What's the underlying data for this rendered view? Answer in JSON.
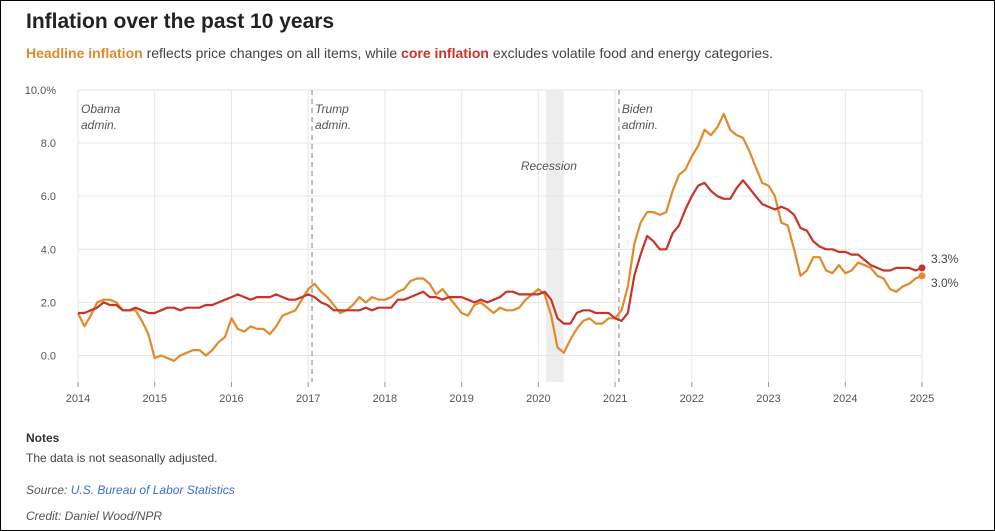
{
  "header": {
    "title": "Inflation over the past 10 years",
    "subtitle_part1": "Headline inflation",
    "subtitle_part2": " reflects price changes on all items, while ",
    "subtitle_part3": "core inflation",
    "subtitle_part4": " excludes volatile food and energy categories."
  },
  "notes": {
    "heading": "Notes",
    "text": "The data is not seasonally adjusted."
  },
  "source": {
    "prefix": "Source: ",
    "link_text": "U.S. Bureau of Labor Statistics"
  },
  "credit": "Credit: Daniel Wood/NPR",
  "colors": {
    "headline": "#e08a2c",
    "core": "#c8332a",
    "grid": "#e6e6e6",
    "recession": "#ededed",
    "divider": "#aaaaaa"
  },
  "chart_data": {
    "type": "line",
    "title": "Inflation over the past 10 years",
    "xlabel": "",
    "ylabel": "",
    "xlim": [
      2014,
      2025
    ],
    "ylim": [
      -1,
      10
    ],
    "y_ticks": [
      0,
      2,
      4,
      6,
      8,
      10
    ],
    "y_tick_labels": [
      "0.0",
      "2.0",
      "4.0",
      "6.0",
      "8.0",
      "10.0%"
    ],
    "x_ticks": [
      2014,
      2015,
      2016,
      2017,
      2018,
      2019,
      2020,
      2021,
      2022,
      2023,
      2024,
      2025
    ],
    "grid": true,
    "recession": {
      "start": 2020.1,
      "end": 2020.33,
      "label": "Recession"
    },
    "administrations": [
      {
        "year": 2014,
        "line1": "Obama",
        "line2": "admin.",
        "divider": false
      },
      {
        "year": 2017.05,
        "line1": "Trump",
        "line2": "admin.",
        "divider": true
      },
      {
        "year": 2021.05,
        "line1": "Biden",
        "line2": "admin.",
        "divider": true
      }
    ],
    "series": [
      {
        "name": "Headline inflation",
        "end_label": "3.0%",
        "points": [
          [
            2014.0,
            1.6
          ],
          [
            2014.083,
            1.1
          ],
          [
            2014.167,
            1.5
          ],
          [
            2014.25,
            2.0
          ],
          [
            2014.333,
            2.1
          ],
          [
            2014.417,
            2.1
          ],
          [
            2014.5,
            2.0
          ],
          [
            2014.583,
            1.7
          ],
          [
            2014.667,
            1.7
          ],
          [
            2014.75,
            1.7
          ],
          [
            2014.833,
            1.3
          ],
          [
            2014.917,
            0.8
          ],
          [
            2015.0,
            -0.1
          ],
          [
            2015.083,
            0.0
          ],
          [
            2015.167,
            -0.1
          ],
          [
            2015.25,
            -0.2
          ],
          [
            2015.333,
            0.0
          ],
          [
            2015.417,
            0.1
          ],
          [
            2015.5,
            0.2
          ],
          [
            2015.583,
            0.2
          ],
          [
            2015.667,
            0.0
          ],
          [
            2015.75,
            0.2
          ],
          [
            2015.833,
            0.5
          ],
          [
            2015.917,
            0.7
          ],
          [
            2016.0,
            1.4
          ],
          [
            2016.083,
            1.0
          ],
          [
            2016.167,
            0.9
          ],
          [
            2016.25,
            1.1
          ],
          [
            2016.333,
            1.0
          ],
          [
            2016.417,
            1.0
          ],
          [
            2016.5,
            0.8
          ],
          [
            2016.583,
            1.1
          ],
          [
            2016.667,
            1.5
          ],
          [
            2016.75,
            1.6
          ],
          [
            2016.833,
            1.7
          ],
          [
            2016.917,
            2.1
          ],
          [
            2017.0,
            2.5
          ],
          [
            2017.083,
            2.7
          ],
          [
            2017.167,
            2.4
          ],
          [
            2017.25,
            2.2
          ],
          [
            2017.333,
            1.9
          ],
          [
            2017.417,
            1.6
          ],
          [
            2017.5,
            1.7
          ],
          [
            2017.583,
            1.9
          ],
          [
            2017.667,
            2.2
          ],
          [
            2017.75,
            2.0
          ],
          [
            2017.833,
            2.2
          ],
          [
            2017.917,
            2.1
          ],
          [
            2018.0,
            2.1
          ],
          [
            2018.083,
            2.2
          ],
          [
            2018.167,
            2.4
          ],
          [
            2018.25,
            2.5
          ],
          [
            2018.333,
            2.8
          ],
          [
            2018.417,
            2.9
          ],
          [
            2018.5,
            2.9
          ],
          [
            2018.583,
            2.7
          ],
          [
            2018.667,
            2.3
          ],
          [
            2018.75,
            2.5
          ],
          [
            2018.833,
            2.2
          ],
          [
            2018.917,
            1.9
          ],
          [
            2019.0,
            1.6
          ],
          [
            2019.083,
            1.5
          ],
          [
            2019.167,
            1.9
          ],
          [
            2019.25,
            2.0
          ],
          [
            2019.333,
            1.8
          ],
          [
            2019.417,
            1.6
          ],
          [
            2019.5,
            1.8
          ],
          [
            2019.583,
            1.7
          ],
          [
            2019.667,
            1.7
          ],
          [
            2019.75,
            1.8
          ],
          [
            2019.833,
            2.1
          ],
          [
            2019.917,
            2.3
          ],
          [
            2020.0,
            2.5
          ],
          [
            2020.083,
            2.3
          ],
          [
            2020.167,
            1.5
          ],
          [
            2020.25,
            0.3
          ],
          [
            2020.333,
            0.1
          ],
          [
            2020.417,
            0.6
          ],
          [
            2020.5,
            1.0
          ],
          [
            2020.583,
            1.3
          ],
          [
            2020.667,
            1.4
          ],
          [
            2020.75,
            1.2
          ],
          [
            2020.833,
            1.2
          ],
          [
            2020.917,
            1.4
          ],
          [
            2021.0,
            1.4
          ],
          [
            2021.083,
            1.7
          ],
          [
            2021.167,
            2.6
          ],
          [
            2021.25,
            4.2
          ],
          [
            2021.333,
            5.0
          ],
          [
            2021.417,
            5.4
          ],
          [
            2021.5,
            5.4
          ],
          [
            2021.583,
            5.3
          ],
          [
            2021.667,
            5.4
          ],
          [
            2021.75,
            6.2
          ],
          [
            2021.833,
            6.8
          ],
          [
            2021.917,
            7.0
          ],
          [
            2022.0,
            7.5
          ],
          [
            2022.083,
            7.9
          ],
          [
            2022.167,
            8.5
          ],
          [
            2022.25,
            8.3
          ],
          [
            2022.333,
            8.6
          ],
          [
            2022.417,
            9.1
          ],
          [
            2022.5,
            8.5
          ],
          [
            2022.583,
            8.3
          ],
          [
            2022.667,
            8.2
          ],
          [
            2022.75,
            7.7
          ],
          [
            2022.833,
            7.1
          ],
          [
            2022.917,
            6.5
          ],
          [
            2023.0,
            6.4
          ],
          [
            2023.083,
            6.0
          ],
          [
            2023.167,
            5.0
          ],
          [
            2023.25,
            4.9
          ],
          [
            2023.333,
            4.0
          ],
          [
            2023.417,
            3.0
          ],
          [
            2023.5,
            3.2
          ],
          [
            2023.583,
            3.7
          ],
          [
            2023.667,
            3.7
          ],
          [
            2023.75,
            3.2
          ],
          [
            2023.833,
            3.1
          ],
          [
            2023.917,
            3.4
          ],
          [
            2024.0,
            3.1
          ],
          [
            2024.083,
            3.2
          ],
          [
            2024.167,
            3.5
          ],
          [
            2024.25,
            3.4
          ],
          [
            2024.333,
            3.3
          ],
          [
            2024.417,
            3.0
          ],
          [
            2024.5,
            2.9
          ],
          [
            2024.583,
            2.5
          ],
          [
            2024.667,
            2.4
          ],
          [
            2024.75,
            2.6
          ],
          [
            2024.833,
            2.7
          ],
          [
            2024.917,
            2.9
          ],
          [
            2025.0,
            3.0
          ]
        ]
      },
      {
        "name": "Core inflation",
        "end_label": "3.3%",
        "points": [
          [
            2014.0,
            1.6
          ],
          [
            2014.083,
            1.6
          ],
          [
            2014.167,
            1.7
          ],
          [
            2014.25,
            1.8
          ],
          [
            2014.333,
            2.0
          ],
          [
            2014.417,
            1.9
          ],
          [
            2014.5,
            1.9
          ],
          [
            2014.583,
            1.7
          ],
          [
            2014.667,
            1.7
          ],
          [
            2014.75,
            1.8
          ],
          [
            2014.833,
            1.7
          ],
          [
            2014.917,
            1.6
          ],
          [
            2015.0,
            1.6
          ],
          [
            2015.083,
            1.7
          ],
          [
            2015.167,
            1.8
          ],
          [
            2015.25,
            1.8
          ],
          [
            2015.333,
            1.7
          ],
          [
            2015.417,
            1.8
          ],
          [
            2015.5,
            1.8
          ],
          [
            2015.583,
            1.8
          ],
          [
            2015.667,
            1.9
          ],
          [
            2015.75,
            1.9
          ],
          [
            2015.833,
            2.0
          ],
          [
            2015.917,
            2.1
          ],
          [
            2016.0,
            2.2
          ],
          [
            2016.083,
            2.3
          ],
          [
            2016.167,
            2.2
          ],
          [
            2016.25,
            2.1
          ],
          [
            2016.333,
            2.2
          ],
          [
            2016.417,
            2.2
          ],
          [
            2016.5,
            2.2
          ],
          [
            2016.583,
            2.3
          ],
          [
            2016.667,
            2.2
          ],
          [
            2016.75,
            2.1
          ],
          [
            2016.833,
            2.1
          ],
          [
            2016.917,
            2.2
          ],
          [
            2017.0,
            2.3
          ],
          [
            2017.083,
            2.2
          ],
          [
            2017.167,
            2.0
          ],
          [
            2017.25,
            1.9
          ],
          [
            2017.333,
            1.7
          ],
          [
            2017.417,
            1.7
          ],
          [
            2017.5,
            1.7
          ],
          [
            2017.583,
            1.7
          ],
          [
            2017.667,
            1.7
          ],
          [
            2017.75,
            1.8
          ],
          [
            2017.833,
            1.7
          ],
          [
            2017.917,
            1.8
          ],
          [
            2018.0,
            1.8
          ],
          [
            2018.083,
            1.8
          ],
          [
            2018.167,
            2.1
          ],
          [
            2018.25,
            2.1
          ],
          [
            2018.333,
            2.2
          ],
          [
            2018.417,
            2.3
          ],
          [
            2018.5,
            2.4
          ],
          [
            2018.583,
            2.2
          ],
          [
            2018.667,
            2.2
          ],
          [
            2018.75,
            2.1
          ],
          [
            2018.833,
            2.2
          ],
          [
            2018.917,
            2.2
          ],
          [
            2019.0,
            2.2
          ],
          [
            2019.083,
            2.1
          ],
          [
            2019.167,
            2.0
          ],
          [
            2019.25,
            2.1
          ],
          [
            2019.333,
            2.0
          ],
          [
            2019.417,
            2.1
          ],
          [
            2019.5,
            2.2
          ],
          [
            2019.583,
            2.4
          ],
          [
            2019.667,
            2.4
          ],
          [
            2019.75,
            2.3
          ],
          [
            2019.833,
            2.3
          ],
          [
            2019.917,
            2.3
          ],
          [
            2020.0,
            2.3
          ],
          [
            2020.083,
            2.4
          ],
          [
            2020.167,
            2.1
          ],
          [
            2020.25,
            1.4
          ],
          [
            2020.333,
            1.2
          ],
          [
            2020.417,
            1.2
          ],
          [
            2020.5,
            1.6
          ],
          [
            2020.583,
            1.7
          ],
          [
            2020.667,
            1.7
          ],
          [
            2020.75,
            1.6
          ],
          [
            2020.833,
            1.6
          ],
          [
            2020.917,
            1.6
          ],
          [
            2021.0,
            1.4
          ],
          [
            2021.083,
            1.3
          ],
          [
            2021.167,
            1.6
          ],
          [
            2021.25,
            3.0
          ],
          [
            2021.333,
            3.8
          ],
          [
            2021.417,
            4.5
          ],
          [
            2021.5,
            4.3
          ],
          [
            2021.583,
            4.0
          ],
          [
            2021.667,
            4.0
          ],
          [
            2021.75,
            4.6
          ],
          [
            2021.833,
            4.9
          ],
          [
            2021.917,
            5.5
          ],
          [
            2022.0,
            6.0
          ],
          [
            2022.083,
            6.4
          ],
          [
            2022.167,
            6.5
          ],
          [
            2022.25,
            6.2
          ],
          [
            2022.333,
            6.0
          ],
          [
            2022.417,
            5.9
          ],
          [
            2022.5,
            5.9
          ],
          [
            2022.583,
            6.3
          ],
          [
            2022.667,
            6.6
          ],
          [
            2022.75,
            6.3
          ],
          [
            2022.833,
            6.0
          ],
          [
            2022.917,
            5.7
          ],
          [
            2023.0,
            5.6
          ],
          [
            2023.083,
            5.5
          ],
          [
            2023.167,
            5.6
          ],
          [
            2023.25,
            5.5
          ],
          [
            2023.333,
            5.3
          ],
          [
            2023.417,
            4.8
          ],
          [
            2023.5,
            4.7
          ],
          [
            2023.583,
            4.3
          ],
          [
            2023.667,
            4.1
          ],
          [
            2023.75,
            4.0
          ],
          [
            2023.833,
            4.0
          ],
          [
            2023.917,
            3.9
          ],
          [
            2024.0,
            3.9
          ],
          [
            2024.083,
            3.8
          ],
          [
            2024.167,
            3.8
          ],
          [
            2024.25,
            3.6
          ],
          [
            2024.333,
            3.4
          ],
          [
            2024.417,
            3.3
          ],
          [
            2024.5,
            3.2
          ],
          [
            2024.583,
            3.2
          ],
          [
            2024.667,
            3.3
          ],
          [
            2024.75,
            3.3
          ],
          [
            2024.833,
            3.3
          ],
          [
            2024.917,
            3.2
          ],
          [
            2025.0,
            3.3
          ]
        ]
      }
    ]
  }
}
